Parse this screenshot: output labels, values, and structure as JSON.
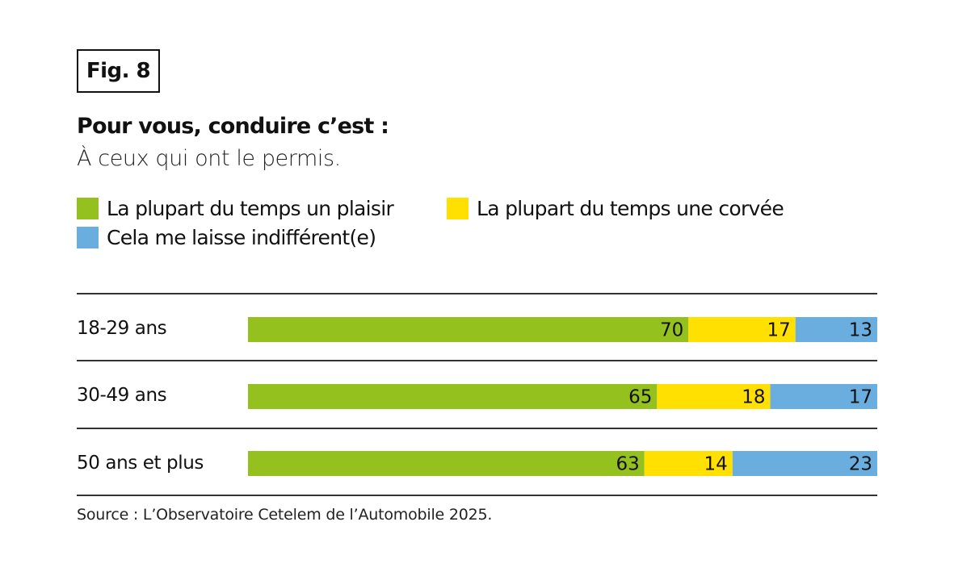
{
  "figure_label": "Fig. 8",
  "chart_data": {
    "type": "bar",
    "orientation": "horizontal",
    "stacked": true,
    "title": "Pour vous, conduire c’est :",
    "subtitle": "À ceux qui ont le permis.",
    "categories": [
      "18-29 ans",
      "30-49 ans",
      "50 ans et plus"
    ],
    "series": [
      {
        "name": "La plupart du temps un plaisir",
        "color": "#95c11f",
        "values": [
          70,
          65,
          63
        ]
      },
      {
        "name": "La plupart du temps une corvée",
        "color": "#ffe000",
        "values": [
          17,
          18,
          14
        ]
      },
      {
        "name": "Cela me laisse indifférent(e)",
        "color": "#6aaee0",
        "values": [
          13,
          17,
          23
        ]
      }
    ],
    "xlim": [
      0,
      100
    ],
    "xlabel": "",
    "ylabel": "",
    "grid": false,
    "legend_position": "top-left",
    "data_labels": true,
    "source": "Source : L’Observatoire Cetelem de l’Automobile 2025."
  }
}
